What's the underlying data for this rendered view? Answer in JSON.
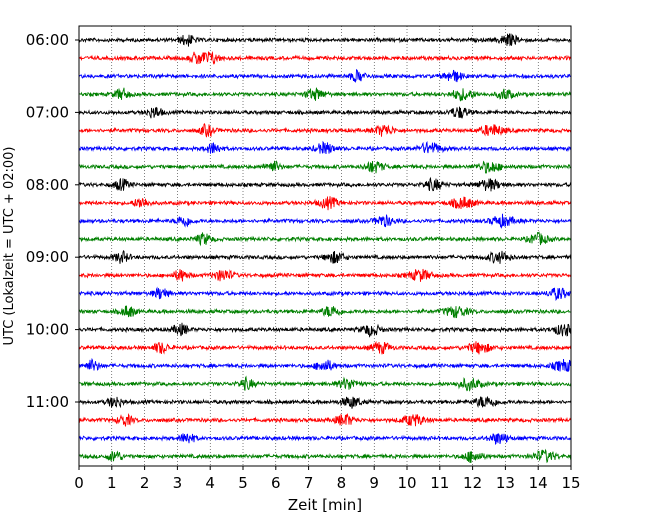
{
  "chart_data": {
    "type": "line",
    "title": "",
    "xlabel": "Zeit  [min]",
    "ylabel": "UTC (Lokalzeit = UTC + 02:00)",
    "xlim": [
      0,
      15
    ],
    "x_ticks": [
      "0",
      "1",
      "2",
      "3",
      "4",
      "5",
      "6",
      "7",
      "8",
      "9",
      "10",
      "11",
      "12",
      "13",
      "14",
      "15"
    ],
    "y_tick_labels": [
      "06:00",
      "07:00",
      "08:00",
      "09:00",
      "10:00",
      "11:00"
    ],
    "grid": "vertical dotted at each minute",
    "colors": [
      "#000000",
      "#ff0000",
      "#0000ff",
      "#008000"
    ],
    "traces": [
      {
        "time": "06:00",
        "color": "#000000",
        "bursts": [
          3.3,
          13.1
        ]
      },
      {
        "time": "06:15",
        "color": "#ff0000",
        "bursts": [
          3.6,
          4.0
        ]
      },
      {
        "time": "06:30",
        "color": "#0000ff",
        "bursts": [
          8.5,
          11.4
        ]
      },
      {
        "time": "06:45",
        "color": "#008000",
        "bursts": [
          1.3,
          7.2,
          11.7,
          13.0
        ]
      },
      {
        "time": "07:00",
        "color": "#000000",
        "bursts": [
          2.3,
          11.6
        ]
      },
      {
        "time": "07:15",
        "color": "#ff0000",
        "bursts": [
          3.9,
          9.3,
          12.6
        ]
      },
      {
        "time": "07:30",
        "color": "#0000ff",
        "bursts": [
          4.1,
          7.5,
          10.7
        ]
      },
      {
        "time": "07:45",
        "color": "#008000",
        "bursts": [
          5.9,
          9.0,
          12.5
        ]
      },
      {
        "time": "08:00",
        "color": "#000000",
        "bursts": [
          1.3,
          10.8,
          12.5
        ]
      },
      {
        "time": "08:15",
        "color": "#ff0000",
        "bursts": [
          1.9,
          7.6,
          11.7
        ]
      },
      {
        "time": "08:30",
        "color": "#0000ff",
        "bursts": [
          3.2,
          9.3,
          12.9
        ]
      },
      {
        "time": "08:45",
        "color": "#008000",
        "bursts": [
          3.8,
          14.0
        ]
      },
      {
        "time": "09:00",
        "color": "#000000",
        "bursts": [
          1.3,
          7.8,
          12.8
        ]
      },
      {
        "time": "09:15",
        "color": "#ff0000",
        "bursts": [
          3.1,
          4.4,
          10.4
        ]
      },
      {
        "time": "09:30",
        "color": "#0000ff",
        "bursts": [
          2.5,
          14.6
        ]
      },
      {
        "time": "09:45",
        "color": "#008000",
        "bursts": [
          1.5,
          7.7,
          11.5
        ]
      },
      {
        "time": "10:00",
        "color": "#000000",
        "bursts": [
          3.1,
          8.9,
          14.8
        ]
      },
      {
        "time": "10:15",
        "color": "#ff0000",
        "bursts": [
          2.5,
          9.2,
          12.2
        ]
      },
      {
        "time": "10:30",
        "color": "#0000ff",
        "bursts": [
          0.4,
          7.5,
          14.8
        ]
      },
      {
        "time": "10:45",
        "color": "#008000",
        "bursts": [
          5.1,
          8.2,
          11.9
        ]
      },
      {
        "time": "11:00",
        "color": "#000000",
        "bursts": [
          1.1,
          8.3,
          12.4
        ]
      },
      {
        "time": "11:15",
        "color": "#ff0000",
        "bursts": [
          1.4,
          8.1,
          10.2
        ]
      },
      {
        "time": "11:30",
        "color": "#0000ff",
        "bursts": [
          3.3,
          12.8
        ]
      },
      {
        "time": "11:45",
        "color": "#008000",
        "bursts": [
          1.1,
          12.0,
          14.2
        ]
      }
    ]
  }
}
